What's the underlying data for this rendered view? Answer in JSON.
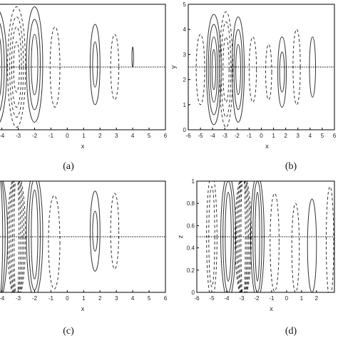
{
  "chart_data": [
    {
      "panel": "a",
      "type": "contour",
      "caption": "(a)",
      "xlabel": "x",
      "ylabel": "",
      "xlim": [
        -4.2,
        6
      ],
      "ylim": [
        0,
        5
      ],
      "xticks": [
        "-4",
        "-3",
        "-2",
        "-1",
        "0",
        "1",
        "2",
        "3",
        "4",
        "5",
        "6"
      ],
      "yticks": [],
      "midline": 2.5,
      "contours": [
        {
          "cx": -4.3,
          "cy": 2.5,
          "rx": [
            0.6,
            0.45,
            0.3
          ],
          "ry": [
            2.3,
            1.9,
            1.4
          ],
          "style": "solid"
        },
        {
          "cx": -3.1,
          "cy": 2.5,
          "rx": [
            0.55,
            0.42,
            0.3,
            0.18
          ],
          "ry": [
            2.4,
            2.0,
            1.6,
            1.0
          ],
          "style": "dashed"
        },
        {
          "cx": -2.0,
          "cy": 2.6,
          "rx": [
            0.5,
            0.35,
            0.2
          ],
          "ry": [
            2.3,
            1.8,
            1.2
          ],
          "style": "solid"
        },
        {
          "cx": -0.75,
          "cy": 2.5,
          "rx": [
            0.3
          ],
          "ry": [
            1.6
          ],
          "style": "dashed"
        },
        {
          "cx": 1.7,
          "cy": 2.6,
          "rx": [
            0.3,
            0.15
          ],
          "ry": [
            1.6,
            0.9
          ],
          "style": "solid"
        },
        {
          "cx": 2.9,
          "cy": 2.5,
          "rx": [
            0.25
          ],
          "ry": [
            1.3
          ],
          "style": "dashed"
        },
        {
          "cx": 4.0,
          "cy": 2.9,
          "rx": [
            0.05
          ],
          "ry": [
            0.4
          ],
          "style": "solid"
        }
      ]
    },
    {
      "panel": "b",
      "type": "contour",
      "caption": "(b)",
      "xlabel": "x",
      "ylabel": "y",
      "xlim": [
        -6,
        6
      ],
      "ylim": [
        0,
        5
      ],
      "xticks": [
        "-6",
        "-5",
        "-4",
        "-3",
        "-2",
        "-1",
        "0",
        "1",
        "2",
        "3",
        "4",
        "5",
        "6"
      ],
      "yticks": [
        "0",
        "1",
        "2",
        "3",
        "4",
        "5"
      ],
      "midline": 2.5,
      "contours": [
        {
          "cx": -5.0,
          "cy": 2.4,
          "rx": [
            0.35
          ],
          "ry": [
            1.4
          ],
          "style": "dashed"
        },
        {
          "cx": -3.9,
          "cy": 2.4,
          "rx": [
            0.6,
            0.45,
            0.3,
            0.15
          ],
          "ry": [
            2.2,
            1.8,
            1.3,
            0.8
          ],
          "style": "solid"
        },
        {
          "cx": -2.9,
          "cy": 2.4,
          "rx": [
            0.55,
            0.4,
            0.25
          ],
          "ry": [
            2.3,
            1.9,
            1.3
          ],
          "style": "dashed"
        },
        {
          "cx": -1.9,
          "cy": 2.4,
          "rx": [
            0.5,
            0.35,
            0.2
          ],
          "ry": [
            2.1,
            1.6,
            1.0
          ],
          "style": "solid"
        },
        {
          "cx": -0.7,
          "cy": 2.4,
          "rx": [
            0.3
          ],
          "ry": [
            1.3
          ],
          "style": "dashed"
        },
        {
          "cx": 0.6,
          "cy": 2.3,
          "rx": [
            0.25
          ],
          "ry": [
            1.1
          ],
          "style": "dashed"
        },
        {
          "cx": 1.7,
          "cy": 2.3,
          "rx": [
            0.35,
            0.2
          ],
          "ry": [
            1.4,
            0.8
          ],
          "style": "solid"
        },
        {
          "cx": 2.9,
          "cy": 2.5,
          "rx": [
            0.3
          ],
          "ry": [
            1.5
          ],
          "style": "dashed"
        },
        {
          "cx": 4.2,
          "cy": 2.5,
          "rx": [
            0.25
          ],
          "ry": [
            1.2
          ],
          "style": "solid"
        }
      ]
    },
    {
      "panel": "c",
      "type": "contour",
      "caption": "(c)",
      "xlabel": "x",
      "ylabel": "",
      "xlim": [
        -4.2,
        6
      ],
      "ylim": [
        0,
        1
      ],
      "xticks": [
        "-4",
        "-3",
        "-2",
        "-1",
        "0",
        "1",
        "2",
        "3",
        "4",
        "5",
        "6"
      ],
      "yticks": [],
      "midline": 0.5,
      "contours": [
        {
          "cx": -4.2,
          "cy": 0.5,
          "rx": [
            0.55,
            0.4,
            0.25
          ],
          "ry": [
            0.58,
            0.58,
            0.58
          ],
          "style": "solid"
        },
        {
          "cx": -3.1,
          "cy": 0.5,
          "rx": [
            0.55,
            0.45,
            0.35,
            0.25,
            0.15
          ],
          "ry": [
            0.58,
            0.58,
            0.58,
            0.58,
            0.58
          ],
          "style": "dashed"
        },
        {
          "cx": -2.0,
          "cy": 0.52,
          "rx": [
            0.5,
            0.35,
            0.2
          ],
          "ry": [
            0.56,
            0.5,
            0.4
          ],
          "style": "solid"
        },
        {
          "cx": -0.8,
          "cy": 0.45,
          "rx": [
            0.35
          ],
          "ry": [
            0.42
          ],
          "style": "dashed"
        },
        {
          "cx": 1.7,
          "cy": 0.55,
          "rx": [
            0.3,
            0.15
          ],
          "ry": [
            0.36,
            0.18
          ],
          "style": "solid"
        },
        {
          "cx": 2.9,
          "cy": 0.55,
          "rx": [
            0.25
          ],
          "ry": [
            0.34
          ],
          "style": "dashed"
        }
      ]
    },
    {
      "panel": "d",
      "type": "contour",
      "caption": "(d)",
      "xlabel": "x",
      "ylabel": "z",
      "xlim": [
        -6,
        3.2
      ],
      "ylim": [
        0,
        1
      ],
      "xticks": [
        "-6",
        "-5",
        "-4",
        "-3",
        "-2",
        "-1",
        "0",
        "1",
        "2"
      ],
      "yticks": [
        "0",
        "0.2",
        "0.4",
        "0.6",
        "0.8",
        "1"
      ],
      "midline": 0.5,
      "contours": [
        {
          "cx": -5.0,
          "cy": 0.5,
          "rx": [
            0.35,
            0.2
          ],
          "ry": [
            0.56,
            0.45
          ],
          "style": "dashed"
        },
        {
          "cx": -3.9,
          "cy": 0.5,
          "rx": [
            0.5,
            0.35,
            0.2
          ],
          "ry": [
            0.56,
            0.5,
            0.4
          ],
          "style": "solid"
        },
        {
          "cx": -2.9,
          "cy": 0.5,
          "rx": [
            0.55,
            0.45,
            0.35,
            0.25,
            0.15
          ],
          "ry": [
            0.56,
            0.56,
            0.56,
            0.56,
            0.56
          ],
          "style": "dashed"
        },
        {
          "cx": -1.95,
          "cy": 0.5,
          "rx": [
            0.45,
            0.3,
            0.15
          ],
          "ry": [
            0.56,
            0.5,
            0.4
          ],
          "style": "solid"
        },
        {
          "cx": -0.8,
          "cy": 0.45,
          "rx": [
            0.3
          ],
          "ry": [
            0.44
          ],
          "style": "dashed"
        },
        {
          "cx": 0.6,
          "cy": 0.4,
          "rx": [
            0.25
          ],
          "ry": [
            0.4
          ],
          "style": "dashed"
        },
        {
          "cx": 1.7,
          "cy": 0.42,
          "rx": [
            0.3
          ],
          "ry": [
            0.42
          ],
          "style": "solid"
        },
        {
          "cx": 2.9,
          "cy": 0.45,
          "rx": [
            0.25
          ],
          "ry": [
            0.5
          ],
          "style": "dashed"
        }
      ]
    }
  ]
}
